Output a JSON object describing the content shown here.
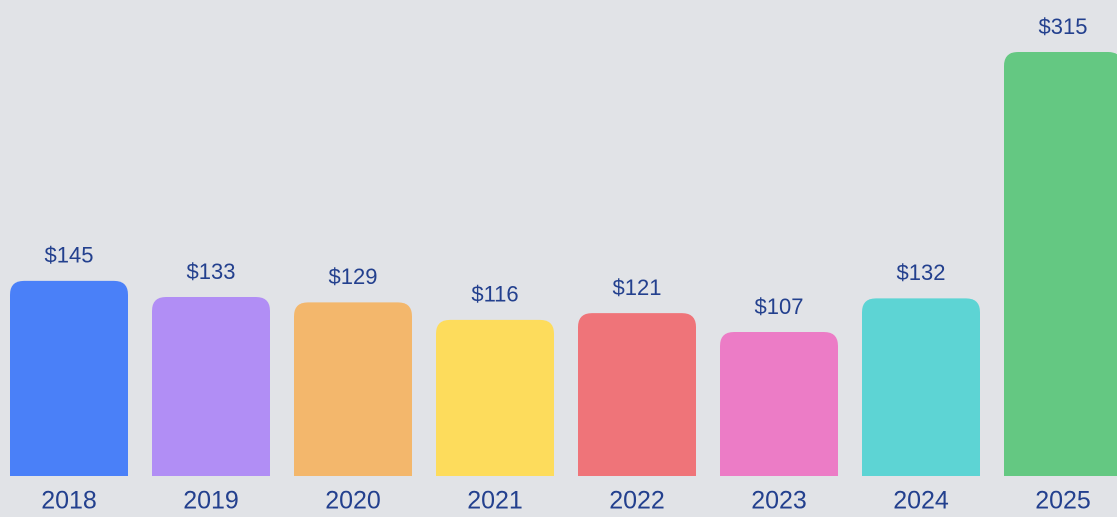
{
  "chart_data": {
    "type": "bar",
    "categories": [
      "2018",
      "2019",
      "2020",
      "2021",
      "2022",
      "2023",
      "2024",
      "2025"
    ],
    "values": [
      145,
      133,
      129,
      116,
      121,
      107,
      132,
      315
    ],
    "value_labels": [
      "$145",
      "$133",
      "$129",
      "$116",
      "$121",
      "$107",
      "$132",
      "$315"
    ],
    "colors": [
      "#4a80f8",
      "#b18ef5",
      "#f3b76c",
      "#fddc5c",
      "#ef7479",
      "#ec7cc6",
      "#5dd4d4",
      "#64c882"
    ]
  }
}
